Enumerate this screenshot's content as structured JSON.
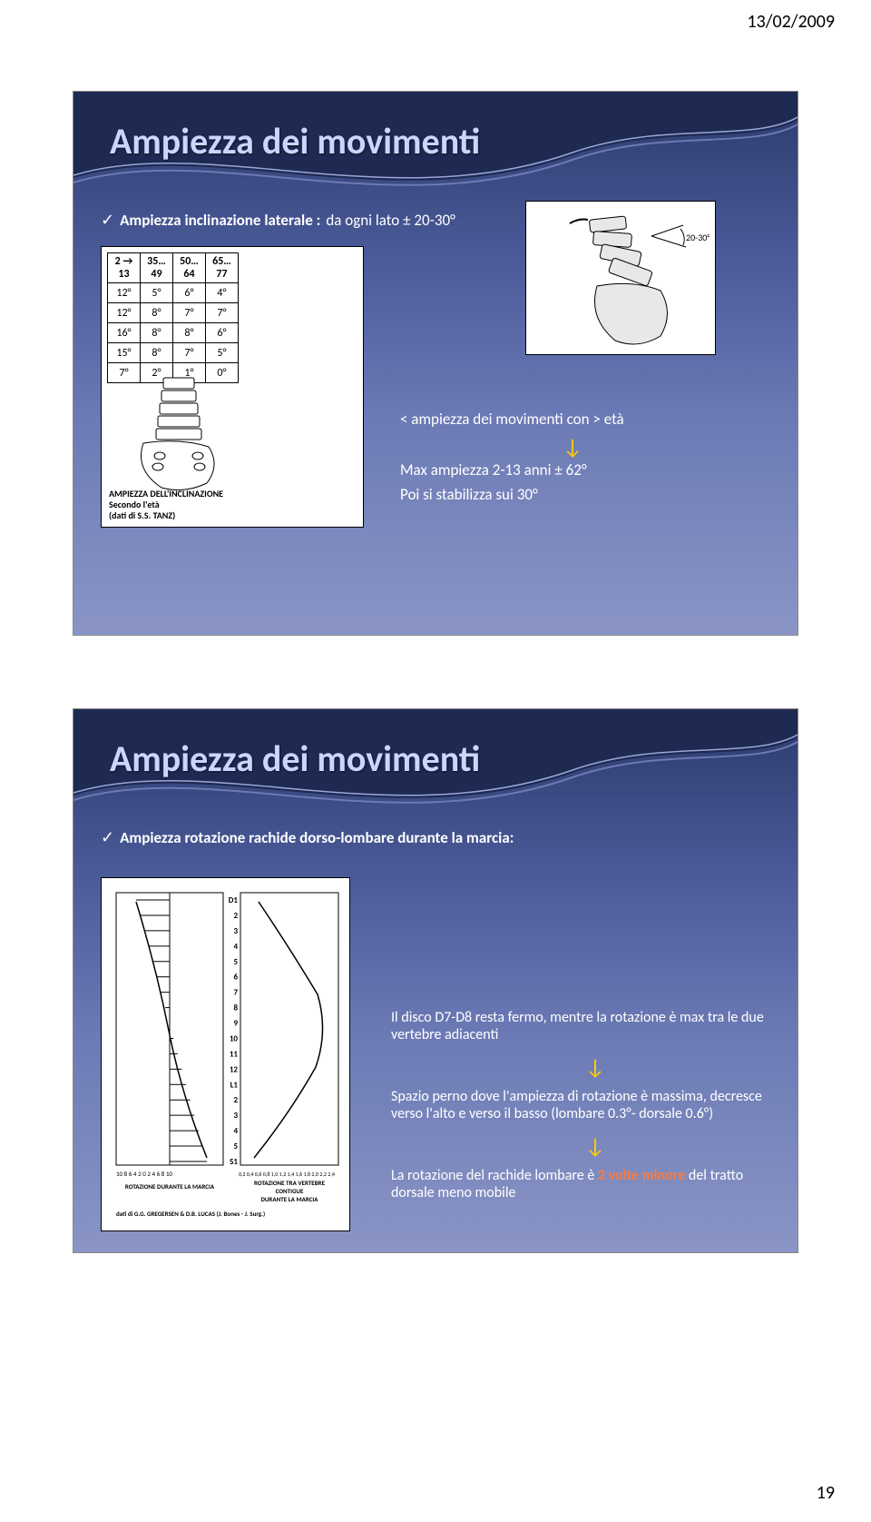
{
  "header_date": "13/02/2009",
  "page_number": "19",
  "slide1": {
    "title": "Ampiezza dei movimenti",
    "line_label": "Ampiezza inclinazione laterale :",
    "line_value": "da ogni lato ± 20-30°",
    "spine_angle_label": "20-30°",
    "age_ranges": [
      "2 → 13",
      "35…49",
      "50…64",
      "65…77"
    ],
    "rows": [
      [
        "12°",
        "5°",
        "6°",
        "4°"
      ],
      [
        "12°",
        "8°",
        "7°",
        "7°"
      ],
      [
        "16°",
        "8°",
        "8°",
        "6°"
      ],
      [
        "15°",
        "8°",
        "7°",
        "5°"
      ],
      [
        "7°",
        "2°",
        "1°",
        "0°"
      ]
    ],
    "table_title": "AMPIEZZA DELL'INCLINAZIONE",
    "table_sub1": "Secondo l'età",
    "table_sub2": "(dati di S.S. TANZ)",
    "note1": "< ampiezza dei movimenti con > età",
    "note2": "Max ampiezza 2-13 anni ± 62°",
    "note3": "Poi si stabilizza sui 30°"
  },
  "slide2": {
    "title": "Ampiezza dei movimenti",
    "line_label": "Ampiezza rotazione rachide dorso-lombare durante la marcia:",
    "block1": "Il disco D7-D8 resta fermo, mentre la rotazione è max tra le due vertebre adiacenti",
    "block2": "Spazio perno dove l'ampiezza di rotazione è massima, decresce verso l'alto e verso il basso (lombare 0.3°- dorsale 0.6°)",
    "block3a": "La rotazione del rachide lombare è ",
    "block3_accent": "2 volte minore",
    "block3b": " del tratto dorsale meno mobile",
    "fig_xlabels_left": "10  8  6  4  2  0  2  4  6  8  10",
    "fig_xlabels_right": "0,2 0,4 0,6 0,8 1,0 1,2 1,4 1,6 1,8 2,0 2,2 2,4",
    "fig_caption_left": "ROTAZIONE DURANTE LA MARCIA",
    "fig_caption_right_1": "ROTAZIONE TRA VERTEBRE",
    "fig_caption_right_2": "CONTIGUE",
    "fig_caption_right_3": "DURANTE LA MARCIA",
    "fig_credits": "dati di G.G. GREGERSEN & D.B. LUCAS (J. Bones - J. Surg.)",
    "ylevels": [
      "D1",
      "2",
      "3",
      "4",
      "5",
      "6",
      "7",
      "8",
      "9",
      "10",
      "11",
      "12",
      "L1",
      "2",
      "3",
      "4",
      "5",
      "S1"
    ]
  }
}
